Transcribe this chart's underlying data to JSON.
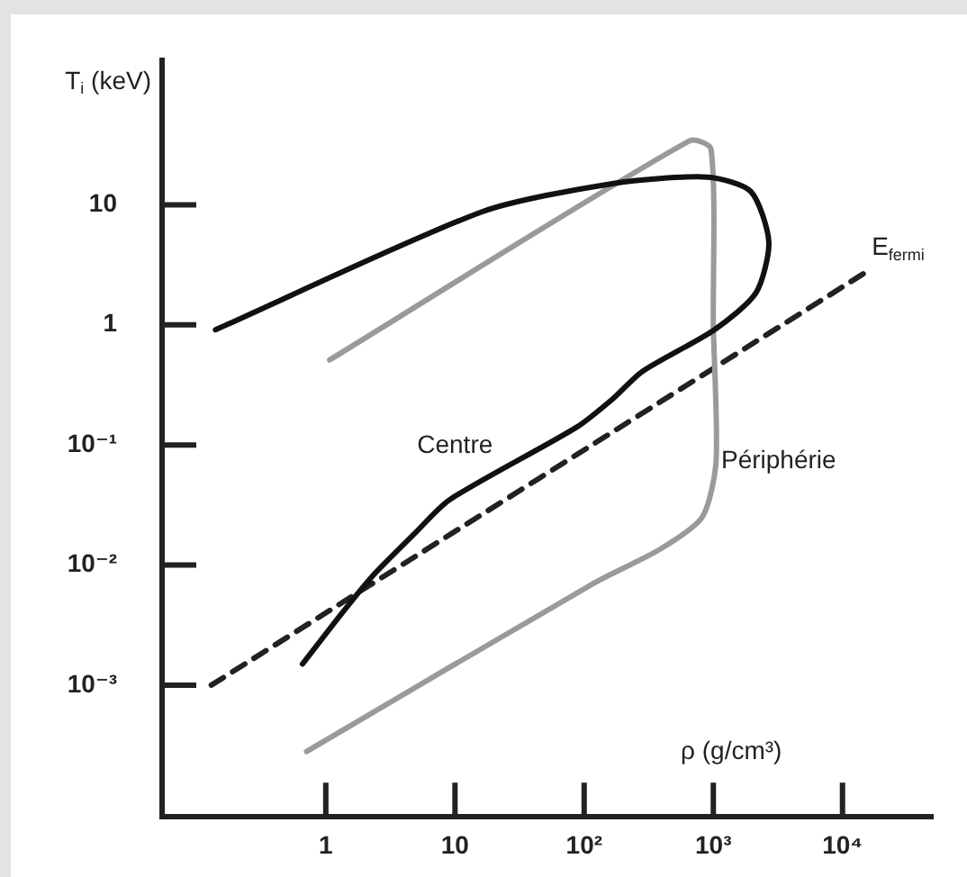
{
  "chart_data": {
    "type": "line",
    "xlabel": "ρ (g/cm³)",
    "ylabel": "T$_{i}$ (keV)",
    "log": "xy",
    "xlim": [
      0.054,
      50000
    ],
    "ylim": [
      8e-05,
      160
    ],
    "xticks": [
      1,
      10,
      {
        "value": 100,
        "label": "10²"
      },
      {
        "value": 1000,
        "label": "10³"
      },
      {
        "value": 10000,
        "label": "10⁴"
      }
    ],
    "yticks": [
      {
        "value": 0.001,
        "label": "10⁻³"
      },
      {
        "value": 0.01,
        "label": "10⁻²"
      },
      {
        "value": 0.1,
        "label": "10⁻¹"
      },
      1,
      10
    ],
    "legend": false,
    "grid": false,
    "marker": "none",
    "series": [
      {
        "color": "#111111",
        "line_style": "solid",
        "x": [
          0.66,
          1.34,
          2.3,
          4.8,
          9.1,
          87,
          165,
          283,
          1020,
          2140,
          2690,
          1950,
          900,
          165,
          16,
          0.14
        ],
        "values": [
          0.0015,
          0.004,
          0.0081,
          0.018,
          0.035,
          0.14,
          0.24,
          0.41,
          0.91,
          1.85,
          4.9,
          12.9,
          17,
          15,
          8.7,
          0.91
        ]
      },
      {
        "color": "#9a9a9a",
        "line_style": "solid",
        "x": [
          1.07,
          650,
          960,
          1000,
          1050,
          820,
          390,
          120,
          0.71
        ],
        "values": [
          0.51,
          34,
          29,
          1,
          0.073,
          0.025,
          0.0136,
          0.0071,
          0.00028
        ]
      },
      {
        "name": "E$_{fermi}$",
        "color": "#222222",
        "line_style": "dashed",
        "x": [
          0.13,
          14800
        ],
        "values": [
          0.001,
          2.7
        ]
      }
    ],
    "annotations": [
      "Centre",
      "Périphérie"
    ]
  }
}
